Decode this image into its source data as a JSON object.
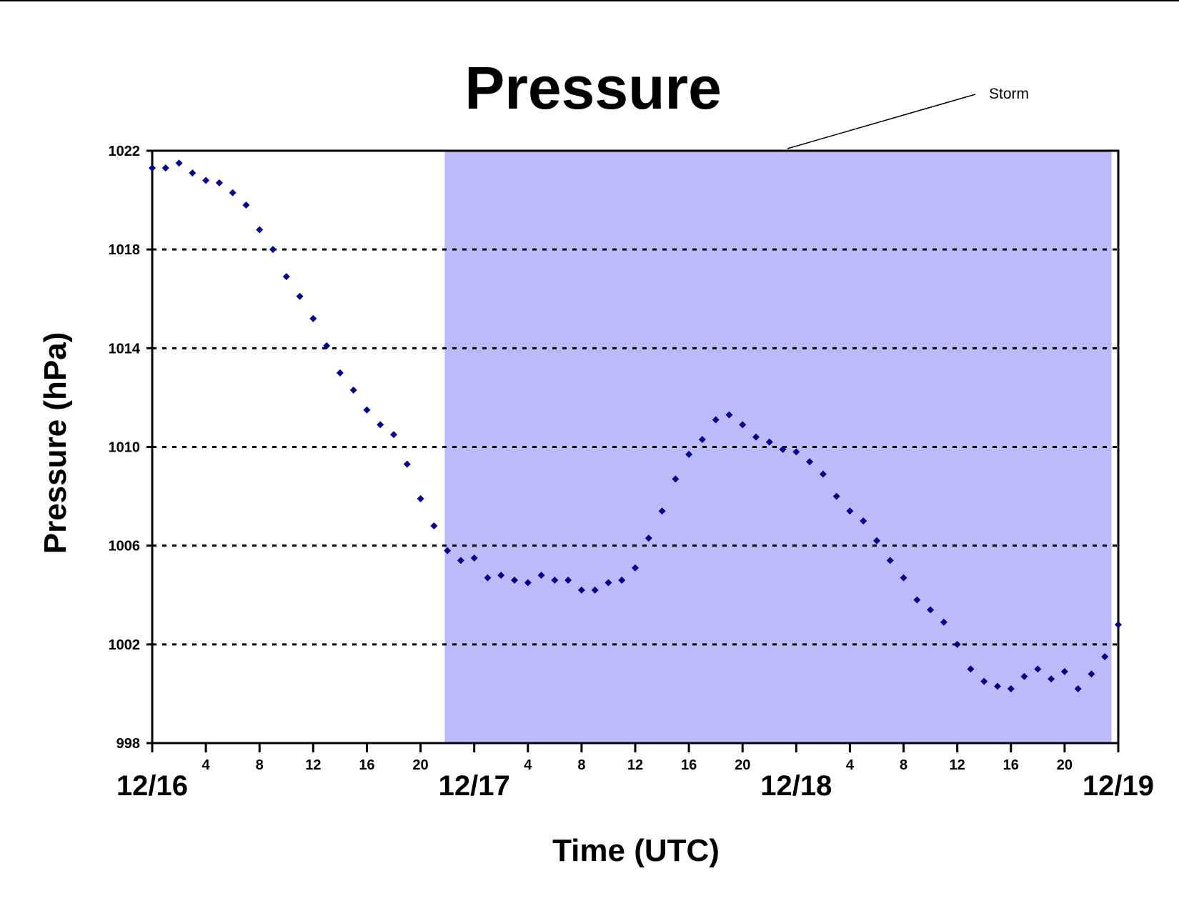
{
  "chart_data": {
    "type": "scatter",
    "title": "Pressure",
    "ylabel": "Pressure (hPa)",
    "xlabel": "Time (UTC)",
    "ylim": [
      998,
      1022
    ],
    "yticks": [
      998,
      1002,
      1006,
      1010,
      1014,
      1018,
      1022
    ],
    "xlim": [
      "12/16 00",
      "12/19 00"
    ],
    "xticks": [
      {
        "hour": 0,
        "label": ""
      },
      {
        "hour": 4,
        "label": "4"
      },
      {
        "hour": 8,
        "label": "8"
      },
      {
        "hour": 12,
        "label": "12"
      },
      {
        "hour": 16,
        "label": "16"
      },
      {
        "hour": 20,
        "label": "20"
      },
      {
        "hour": 24,
        "label": ""
      },
      {
        "hour": 28,
        "label": "4"
      },
      {
        "hour": 32,
        "label": "8"
      },
      {
        "hour": 36,
        "label": "12"
      },
      {
        "hour": 40,
        "label": "16"
      },
      {
        "hour": 44,
        "label": "20"
      },
      {
        "hour": 48,
        "label": ""
      },
      {
        "hour": 52,
        "label": "4"
      },
      {
        "hour": 56,
        "label": "8"
      },
      {
        "hour": 60,
        "label": "12"
      },
      {
        "hour": 64,
        "label": "16"
      },
      {
        "hour": 68,
        "label": "20"
      },
      {
        "hour": 72,
        "label": ""
      }
    ],
    "day_labels": [
      {
        "hour": 0,
        "label": "12/16"
      },
      {
        "hour": 24,
        "label": "12/17"
      },
      {
        "hour": 48,
        "label": "12/18"
      },
      {
        "hour": 72,
        "label": "12/19"
      }
    ],
    "grid": {
      "horizontal": true,
      "style": "dotted"
    },
    "shaded_region": {
      "label": "Storm",
      "from_hour": 21.8,
      "to_hour": 71.5,
      "color": "#bbbbfa"
    },
    "marker_color": "#00008b",
    "series": [
      {
        "name": "",
        "x_hours": [
          0,
          1,
          2,
          3,
          4,
          5,
          6,
          7,
          8,
          9,
          10,
          11,
          12,
          13,
          14,
          15,
          16,
          17,
          18,
          19,
          20,
          21,
          22,
          23,
          24,
          25,
          26,
          27,
          28,
          29,
          30,
          31,
          32,
          33,
          34,
          35,
          36,
          37,
          38,
          39,
          40,
          41,
          42,
          43,
          44,
          45,
          46,
          47,
          48,
          49,
          50,
          51,
          52,
          53,
          54,
          55,
          56,
          57,
          58,
          59,
          60,
          61,
          62,
          63,
          64,
          65,
          66,
          67,
          68,
          69,
          70,
          71,
          72
        ],
        "values": [
          1021.3,
          1021.3,
          1021.5,
          1021.1,
          1020.8,
          1020.7,
          1020.3,
          1019.8,
          1018.8,
          1018.0,
          1016.9,
          1016.1,
          1015.2,
          1014.1,
          1013.0,
          1012.3,
          1011.5,
          1010.9,
          1010.5,
          1009.3,
          1007.9,
          1006.8,
          1005.8,
          1005.4,
          1005.5,
          1004.7,
          1004.8,
          1004.6,
          1004.5,
          1004.8,
          1004.6,
          1004.6,
          1004.2,
          1004.2,
          1004.5,
          1004.6,
          1005.1,
          1006.3,
          1007.4,
          1008.7,
          1009.7,
          1010.3,
          1011.1,
          1011.3,
          1010.9,
          1010.4,
          1010.2,
          1009.9,
          1009.8,
          1009.4,
          1008.9,
          1008.0,
          1007.4,
          1007.0,
          1006.2,
          1005.4,
          1004.7,
          1003.8,
          1003.4,
          1002.9,
          1002.0,
          1001.0,
          1000.5,
          1000.3,
          1000.2,
          1000.7,
          1001.0,
          1000.6,
          1000.9,
          1000.2,
          1000.8,
          1001.5,
          1002.8
        ]
      }
    ]
  }
}
